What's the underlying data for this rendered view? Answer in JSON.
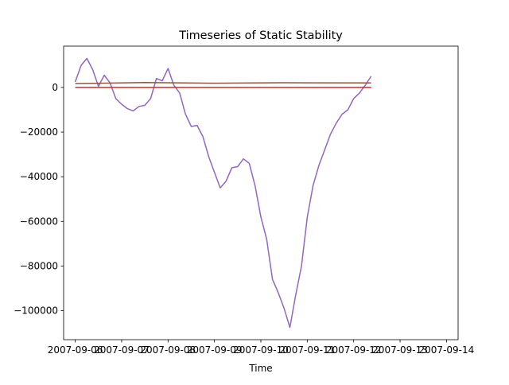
{
  "chart_data": {
    "type": "line",
    "title": "Timeseries of Static Stability",
    "xlabel": "Time",
    "ylabel": "",
    "xlim": [
      "2007-09-05T18:00",
      "2007-09-14T06:00"
    ],
    "ylim": [
      -113000,
      18500
    ],
    "x_ticks": [
      "2007-09-06",
      "2007-09-07",
      "2007-09-08",
      "2007-09-09",
      "2007-09-10",
      "2007-09-11",
      "2007-09-12",
      "2007-09-13",
      "2007-09-14"
    ],
    "y_ticks": [
      0,
      -20000,
      -40000,
      -60000,
      -80000,
      -100000
    ],
    "y_tick_labels": [
      "0",
      "−20000",
      "−40000",
      "−60000",
      "−80000",
      "−100000"
    ],
    "series": [
      {
        "color": "#9467bd",
        "points": [
          [
            "2007-09-06T00:00",
            2500
          ],
          [
            "2007-09-06T03:00",
            9800
          ],
          [
            "2007-09-06T06:00",
            13000
          ],
          [
            "2007-09-06T09:00",
            8000
          ],
          [
            "2007-09-06T12:00",
            500
          ],
          [
            "2007-09-06T15:00",
            5500
          ],
          [
            "2007-09-06T18:00",
            2000
          ],
          [
            "2007-09-06T21:00",
            -5000
          ],
          [
            "2007-09-07T00:00",
            -7500
          ],
          [
            "2007-09-07T03:00",
            -9500
          ],
          [
            "2007-09-07T06:00",
            -10500
          ],
          [
            "2007-09-07T09:00",
            -8500
          ],
          [
            "2007-09-07T12:00",
            -8000
          ],
          [
            "2007-09-07T15:00",
            -5000
          ],
          [
            "2007-09-07T18:00",
            4000
          ],
          [
            "2007-09-07T21:00",
            3000
          ],
          [
            "2007-09-08T00:00",
            8500
          ],
          [
            "2007-09-08T03:00",
            1000
          ],
          [
            "2007-09-08T06:00",
            -2500
          ],
          [
            "2007-09-08T09:00",
            -12000
          ],
          [
            "2007-09-08T12:00",
            -17500
          ],
          [
            "2007-09-08T15:00",
            -17000
          ],
          [
            "2007-09-08T18:00",
            -22000
          ],
          [
            "2007-09-08T21:00",
            -31000
          ],
          [
            "2007-09-09T00:00",
            -38000
          ],
          [
            "2007-09-09T03:00",
            -45000
          ],
          [
            "2007-09-09T06:00",
            -42000
          ],
          [
            "2007-09-09T09:00",
            -36000
          ],
          [
            "2007-09-09T12:00",
            -35500
          ],
          [
            "2007-09-09T15:00",
            -32000
          ],
          [
            "2007-09-09T18:00",
            -34000
          ],
          [
            "2007-09-09T21:00",
            -44000
          ],
          [
            "2007-09-10T00:00",
            -58000
          ],
          [
            "2007-09-10T03:00",
            -68000
          ],
          [
            "2007-09-10T06:00",
            -86000
          ],
          [
            "2007-09-10T09:00",
            -92000
          ],
          [
            "2007-09-10T12:00",
            -99000
          ],
          [
            "2007-09-10T15:00",
            -107500
          ],
          [
            "2007-09-10T18:00",
            -93000
          ],
          [
            "2007-09-10T21:00",
            -80000
          ],
          [
            "2007-09-11T00:00",
            -58000
          ],
          [
            "2007-09-11T03:00",
            -44000
          ],
          [
            "2007-09-11T06:00",
            -35000
          ],
          [
            "2007-09-11T09:00",
            -28000
          ],
          [
            "2007-09-11T12:00",
            -21000
          ],
          [
            "2007-09-11T15:00",
            -16000
          ],
          [
            "2007-09-11T18:00",
            -12000
          ],
          [
            "2007-09-11T21:00",
            -10000
          ],
          [
            "2007-09-12T00:00",
            -5000
          ],
          [
            "2007-09-12T03:00",
            -2500
          ],
          [
            "2007-09-12T06:00",
            1000
          ],
          [
            "2007-09-12T09:00",
            5000
          ]
        ]
      },
      {
        "color": "#8c564b",
        "points": [
          [
            "2007-09-06T00:00",
            1700
          ],
          [
            "2007-09-07T12:00",
            2200
          ],
          [
            "2007-09-09T00:00",
            1900
          ],
          [
            "2007-09-10T12:00",
            2100
          ],
          [
            "2007-09-12T09:00",
            2000
          ]
        ]
      },
      {
        "color": "#d62728",
        "points": [
          [
            "2007-09-06T00:00",
            0
          ],
          [
            "2007-09-12T09:00",
            0
          ]
        ]
      }
    ]
  }
}
